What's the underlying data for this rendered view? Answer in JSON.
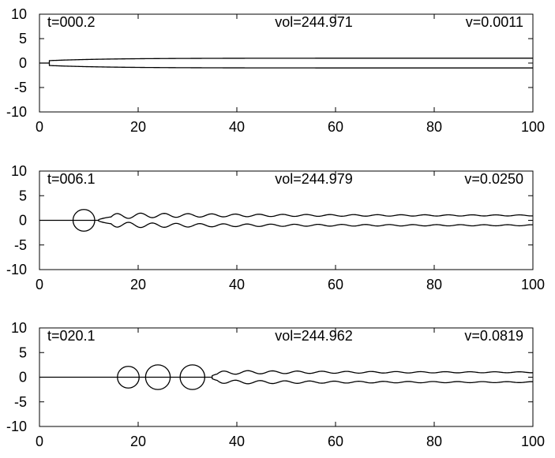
{
  "chart_data": [
    {
      "type": "line",
      "xlim": [
        0,
        100
      ],
      "ylim": [
        -10,
        10
      ],
      "x_ticks": [
        "0",
        "20",
        "40",
        "60",
        "80",
        "100"
      ],
      "y_ticks": [
        "10",
        "5",
        "0",
        "-5",
        "-10"
      ],
      "grid": false,
      "annotations": {
        "t": "t=000.2",
        "vol": "vol=244.971",
        "v": "v=0.0011"
      },
      "profile": {
        "tip_x": 2.0,
        "radius_far": 1.0,
        "radius_near": 0.5,
        "relax_x": 12,
        "ripple_start_x": 6,
        "ripple_wavelength": 4.6,
        "ripple_amplitude": 0.0
      },
      "drops": []
    },
    {
      "type": "line",
      "xlim": [
        0,
        100
      ],
      "ylim": [
        -10,
        10
      ],
      "x_ticks": [
        "0",
        "20",
        "40",
        "60",
        "80",
        "100"
      ],
      "y_ticks": [
        "10",
        "5",
        "0",
        "-5",
        "-10"
      ],
      "grid": false,
      "annotations": {
        "t": "t=006.1",
        "vol": "vol=244.979",
        "v": "v=0.0250"
      },
      "profile": {
        "tip_x": 12.0,
        "radius_far": 1.0,
        "radius_near": 0.15,
        "relax_x": 2.5,
        "ripple_start_x": 14.5,
        "ripple_wavelength": 4.8,
        "ripple_amplitude": 0.5
      },
      "drops": [
        {
          "x": 9.0,
          "radius": 2.2
        }
      ]
    },
    {
      "type": "line",
      "xlim": [
        0,
        100
      ],
      "ylim": [
        -10,
        10
      ],
      "x_ticks": [
        "0",
        "20",
        "40",
        "60",
        "80",
        "100"
      ],
      "y_ticks": [
        "10",
        "5",
        "0",
        "-5",
        "-10"
      ],
      "grid": false,
      "annotations": {
        "t": "t=020.1",
        "vol": "vol=244.962",
        "v": "v=0.0819"
      },
      "profile": {
        "tip_x": 35.0,
        "radius_far": 1.0,
        "radius_near": 0.3,
        "relax_x": 1.5,
        "ripple_start_x": 36,
        "ripple_wavelength": 5.0,
        "ripple_amplitude": 0.35
      },
      "drops": [
        {
          "x": 18.0,
          "radius": 2.2
        },
        {
          "x": 24.0,
          "radius": 2.5
        },
        {
          "x": 31.0,
          "radius": 2.5
        }
      ]
    }
  ]
}
